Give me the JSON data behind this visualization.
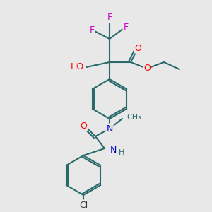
{
  "background_color": "#e8e8e8",
  "bond_color": "#2a6a6a",
  "atom_colors": {
    "F": "#cc00cc",
    "O": "#ff0000",
    "N": "#0000cc",
    "Cl": "#3a3a3a",
    "C": "#2a6a6a",
    "H": "#2a6a6a"
  },
  "bond_lw": 1.5
}
